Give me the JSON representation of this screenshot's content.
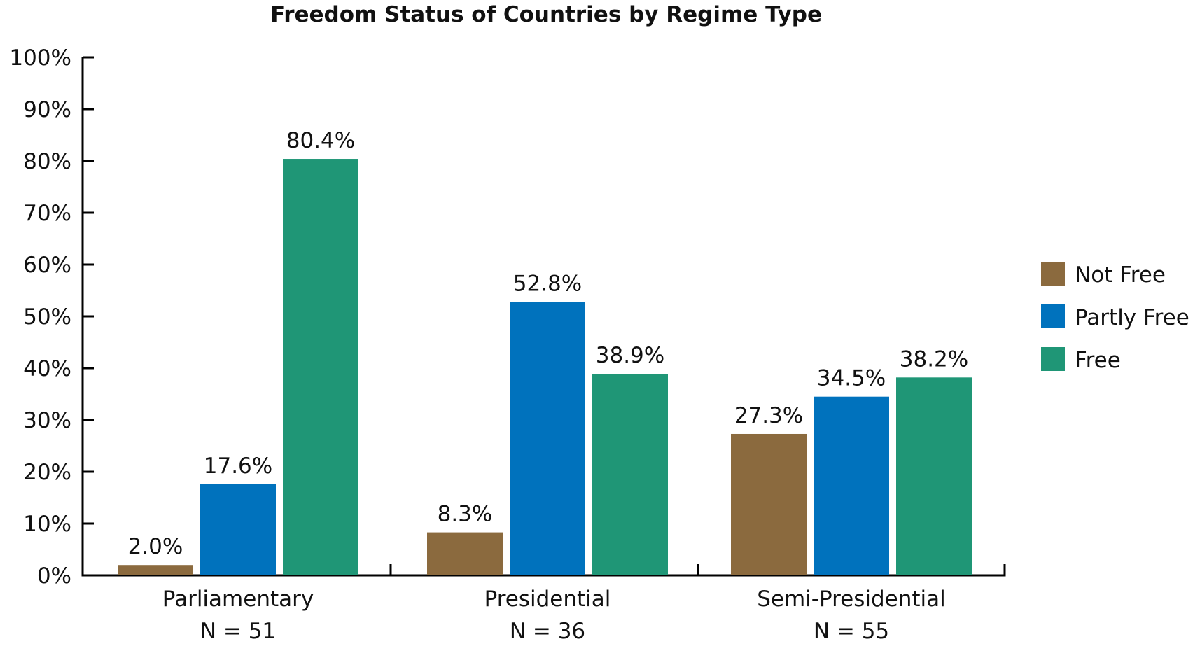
{
  "chart_data": {
    "type": "bar",
    "title": "Freedom Status of Countries by Regime Type",
    "xlabel": "",
    "ylabel": "",
    "ylim": [
      0,
      100
    ],
    "y_ticks": [
      0,
      10,
      20,
      30,
      40,
      50,
      60,
      70,
      80,
      90,
      100
    ],
    "y_tick_suffix": "%",
    "grid": false,
    "legend_position": "right",
    "categories": [
      {
        "name": "Parliamentary",
        "n_label": "N = 51"
      },
      {
        "name": "Presidential",
        "n_label": "N = 36"
      },
      {
        "name": "Semi-Presidential",
        "n_label": "N = 55"
      }
    ],
    "series": [
      {
        "name": "Not Free",
        "color": "#8b6a3e",
        "values": [
          2.0,
          8.3,
          27.3
        ],
        "labels": [
          "2.0%",
          "8.3%",
          "27.3%"
        ]
      },
      {
        "name": "Partly Free",
        "color": "#0072bd",
        "values": [
          17.6,
          52.8,
          34.5
        ],
        "labels": [
          "17.6%",
          "52.8%",
          "34.5%"
        ]
      },
      {
        "name": "Free",
        "color": "#1f9676",
        "values": [
          80.4,
          38.9,
          38.2
        ],
        "labels": [
          "80.4%",
          "38.9%",
          "38.2%"
        ]
      }
    ]
  }
}
